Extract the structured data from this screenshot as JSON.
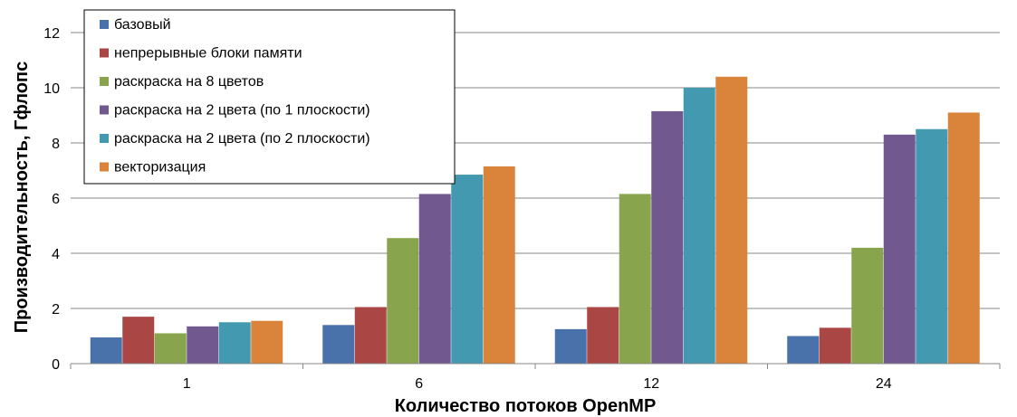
{
  "chart_data": {
    "type": "bar",
    "xlabel": "Количество потоков OpenMP",
    "ylabel": "Производительность, Гфлопс",
    "ylim": [
      0,
      12
    ],
    "yticks": [
      "0",
      "2",
      "4",
      "6",
      "8",
      "10",
      "12"
    ],
    "categories": [
      "1",
      "6",
      "12",
      "24"
    ],
    "grid": "horizontal",
    "legend_position": "top-left",
    "series": [
      {
        "name": "базовый",
        "color": "#4a72aa",
        "values": [
          0.95,
          1.4,
          1.25,
          1.0
        ]
      },
      {
        "name": "непрерывные блоки памяти",
        "color": "#aa4644",
        "values": [
          1.7,
          2.05,
          2.05,
          1.3
        ]
      },
      {
        "name": "раскраска на 8 цветов",
        "color": "#88a54d",
        "values": [
          1.1,
          4.55,
          6.15,
          4.2
        ]
      },
      {
        "name": "раскраска на 2 цвета (по 1 плоскости)",
        "color": "#71598f",
        "values": [
          1.35,
          6.15,
          9.15,
          8.3
        ]
      },
      {
        "name": "раскраска на 2 цвета (по 2 плоскости)",
        "color": "#4299b0",
        "values": [
          1.5,
          6.85,
          10.0,
          8.5
        ]
      },
      {
        "name": "векторизация",
        "color": "#d9843a",
        "values": [
          1.55,
          7.15,
          10.4,
          9.1
        ]
      }
    ]
  }
}
